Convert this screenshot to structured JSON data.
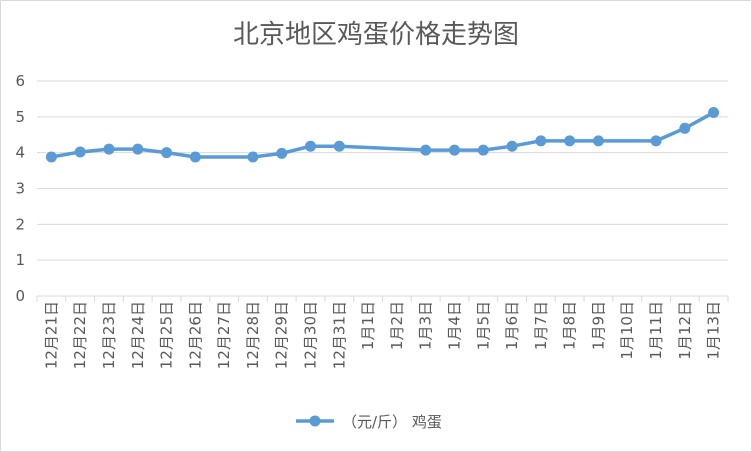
{
  "chart_data": {
    "type": "line",
    "title": "北京地区鸡蛋价格走势图",
    "ylim": [
      0,
      6
    ],
    "yticks": [
      0,
      1,
      2,
      3,
      4,
      5,
      6
    ],
    "grid": true,
    "legend_position": "bottom",
    "categories": [
      "12月21日",
      "12月22日",
      "12月23日",
      "12月24日",
      "12月25日",
      "12月26日",
      "12月27日",
      "12月28日",
      "12月29日",
      "12月30日",
      "12月31日",
      "1月1日",
      "1月2日",
      "1月3日",
      "1月4日",
      "1月5日",
      "1月6日",
      "1月7日",
      "1月8日",
      "1月9日",
      "1月10日",
      "1月11日",
      "1月12日",
      "1月13日"
    ],
    "series": [
      {
        "name": "（元/斤） 鸡蛋",
        "color": "#5b9bd5",
        "values": [
          3.88,
          4.02,
          4.1,
          4.1,
          4.0,
          3.88,
          null,
          3.88,
          3.98,
          4.18,
          4.18,
          null,
          null,
          4.07,
          4.07,
          4.07,
          4.18,
          4.33,
          4.33,
          4.33,
          null,
          4.33,
          4.68,
          5.12
        ]
      }
    ]
  }
}
